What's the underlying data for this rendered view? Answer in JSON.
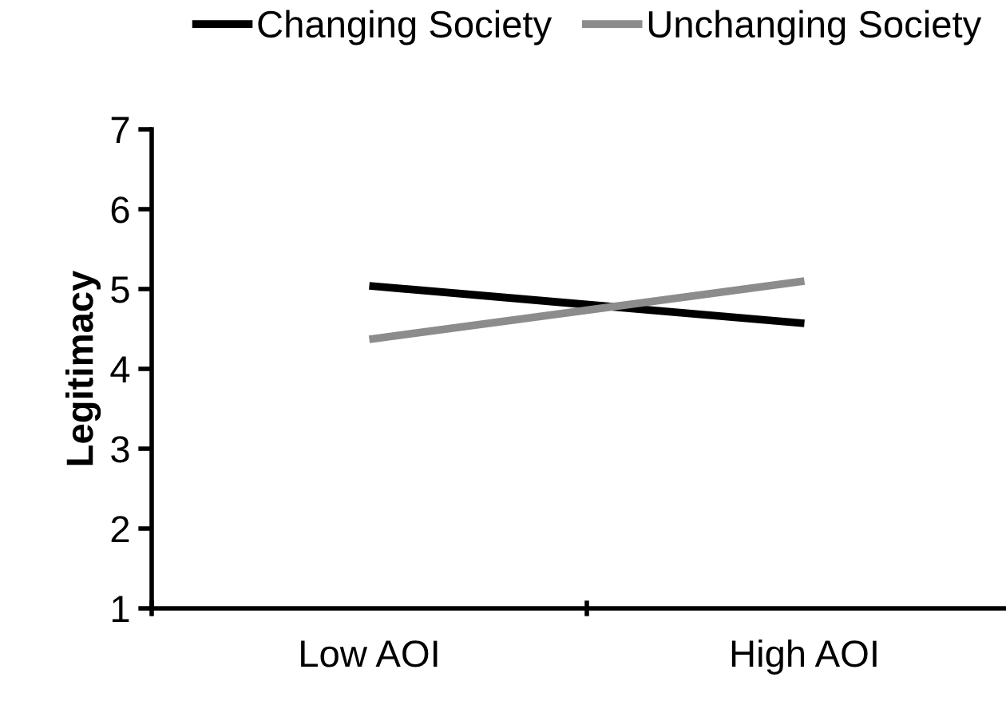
{
  "chart_data": {
    "type": "line",
    "ylabel": "Legitimacy",
    "categories": [
      "Low AOI",
      "High AOI"
    ],
    "series": [
      {
        "name": "Changing Society",
        "color": "#000000",
        "values": [
          5.04,
          4.57
        ]
      },
      {
        "name": "Unchanging Society",
        "color": "#8c8c8c",
        "values": [
          4.37,
          5.1
        ]
      }
    ],
    "ylim": [
      1,
      7
    ],
    "yticks": [
      1,
      2,
      3,
      4,
      5,
      6,
      7
    ],
    "grid": false,
    "legend": "top",
    "marker": "none",
    "line_style": "solid"
  }
}
